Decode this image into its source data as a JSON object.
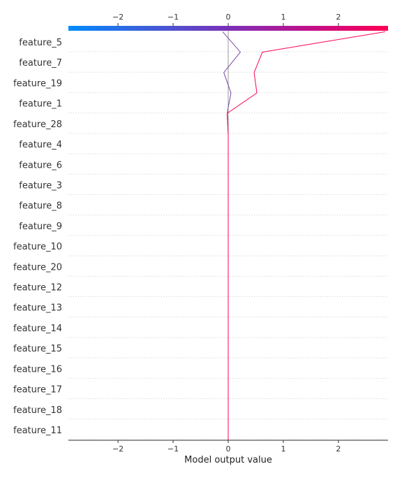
{
  "chart_data": {
    "type": "line",
    "subtype": "decision-plot",
    "xlabel": "Model output value",
    "xlim": [
      -2.9,
      2.9
    ],
    "xticks": [
      -2,
      -1,
      0,
      1,
      2
    ],
    "xtick_labels": [
      "−2",
      "−1",
      "0",
      "1",
      "2"
    ],
    "base_value": 0,
    "features": [
      "feature_5",
      "feature_7",
      "feature_19",
      "feature_1",
      "feature_28",
      "feature_4",
      "feature_6",
      "feature_3",
      "feature_8",
      "feature_9",
      "feature_10",
      "feature_20",
      "feature_12",
      "feature_13",
      "feature_14",
      "feature_15",
      "feature_16",
      "feature_17",
      "feature_18",
      "feature_11"
    ],
    "colorbar": {
      "min": -2.9,
      "max": 2.9,
      "colors": [
        "#008bfb",
        "#ff0052"
      ]
    },
    "grid": "dotted horizontal",
    "series": [
      {
        "values": [
          0,
          0,
          0,
          0,
          0,
          0,
          0,
          0,
          0,
          0,
          0,
          0,
          0,
          0,
          0,
          -0.02,
          0.05,
          -0.08,
          0.22,
          -0.1
        ]
      },
      {
        "values": [
          0,
          0,
          0,
          0,
          0,
          0,
          0,
          0,
          0,
          0,
          0,
          0,
          0,
          0,
          0,
          -0.02,
          0.52,
          0.47,
          0.62,
          2.85
        ]
      }
    ]
  }
}
